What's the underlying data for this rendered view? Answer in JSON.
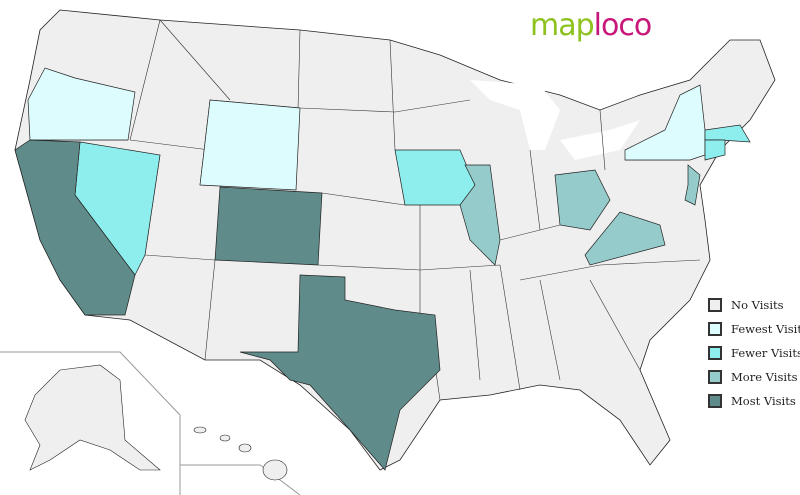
{
  "logo": {
    "part1": "map",
    "part2": "loco"
  },
  "legend": [
    {
      "key": "none",
      "label": "No Visits",
      "color": "#efefef"
    },
    {
      "key": "fewest",
      "label": "Fewest Visits",
      "color": "#dcfcfd"
    },
    {
      "key": "fewer",
      "label": "Fewer Visits",
      "color": "#8eeeed"
    },
    {
      "key": "more",
      "label": "More Visits",
      "color": "#95cccb"
    },
    {
      "key": "most",
      "label": "Most Visits",
      "color": "#5f8b8a"
    }
  ],
  "regions": {
    "OR": "fewest",
    "WY": "fewest",
    "NY": "fewest",
    "NV": "fewer",
    "IA": "fewer",
    "MA": "fewer",
    "CT": "fewer",
    "IL": "more",
    "OH": "more",
    "VA": "more",
    "NJ": "more",
    "CA": "most",
    "CO": "most",
    "TX": "most"
  }
}
